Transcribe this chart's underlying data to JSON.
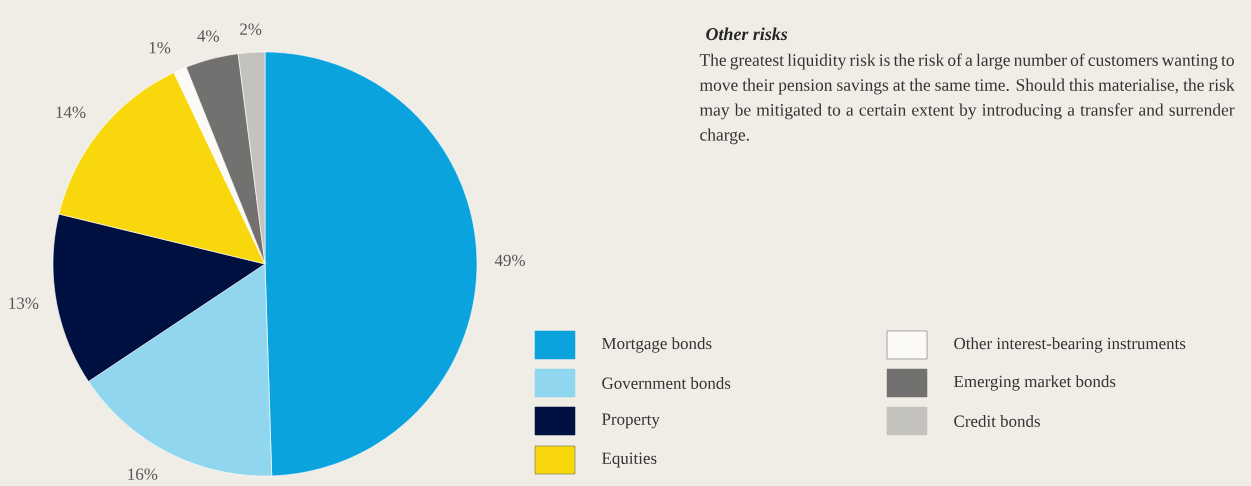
{
  "chart_data": {
    "type": "pie",
    "categories": [
      "Mortgage bonds",
      "Government bonds",
      "Property",
      "Equities",
      "Other interest-bearing instruments",
      "Emerging market bonds",
      "Credit bonds"
    ],
    "values": [
      49,
      16,
      13,
      14,
      1,
      4,
      2
    ],
    "value_labels": [
      "49%",
      "16%",
      "13%",
      "14%",
      "1%",
      "4%",
      "2%"
    ],
    "colors": [
      "#0ba3dd",
      "#8fd6ee",
      "#001040",
      "#f8d80c",
      "#fbfaf7",
      "#737170",
      "#c4c2bc"
    ],
    "legend": "right",
    "annotations": [
      "Other risks",
      "The greatest liquidity risk is the risk of a large number of customers wanting to move their pension savings at the same time. Should this materialise, the risk may be mitigated to a certain extent by introducing a transfer and surrender charge."
    ]
  }
}
